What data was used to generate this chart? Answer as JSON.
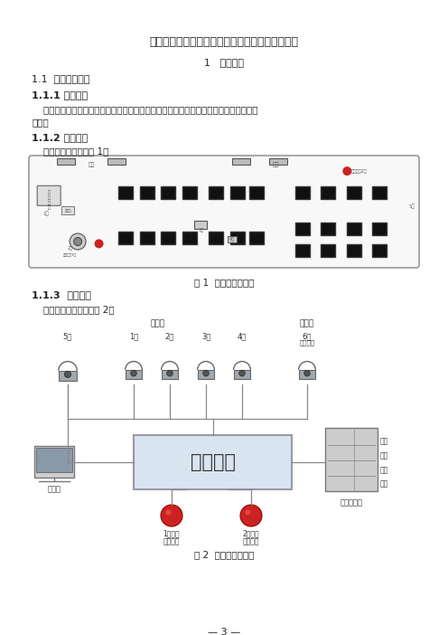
{
  "title": "公交车辆车载视频监视设施基本技术要求（试行）",
  "section1": "1   技术要求",
  "s1_1": "1.1  设施基本要求",
  "s1_1_1_head": "1.1.1 设施组成",
  "s1_1_1_body_line1": "    车载视频监控设施应由主机（含视频录像机）、摄像机、监视器、报警按钮底座等设备",
  "s1_1_1_body_line2": "组成。",
  "s1_1_2_head": "1.1.2 设施布局",
  "s1_1_2_body": "    设施安装位置参见图 1：",
  "fig1_caption": "图 1  安装位置示意图",
  "s1_1_3_head": "1.1.3  设施联接",
  "s1_1_3_body": "    设施间的联接拓扑见图 2：",
  "fig2_caption": "图 2  设施联接拓扑图",
  "page_num": "— 3 —",
  "bg_color": "#ffffff",
  "text_color": "#222222",
  "diagram_line_color": "#777777"
}
